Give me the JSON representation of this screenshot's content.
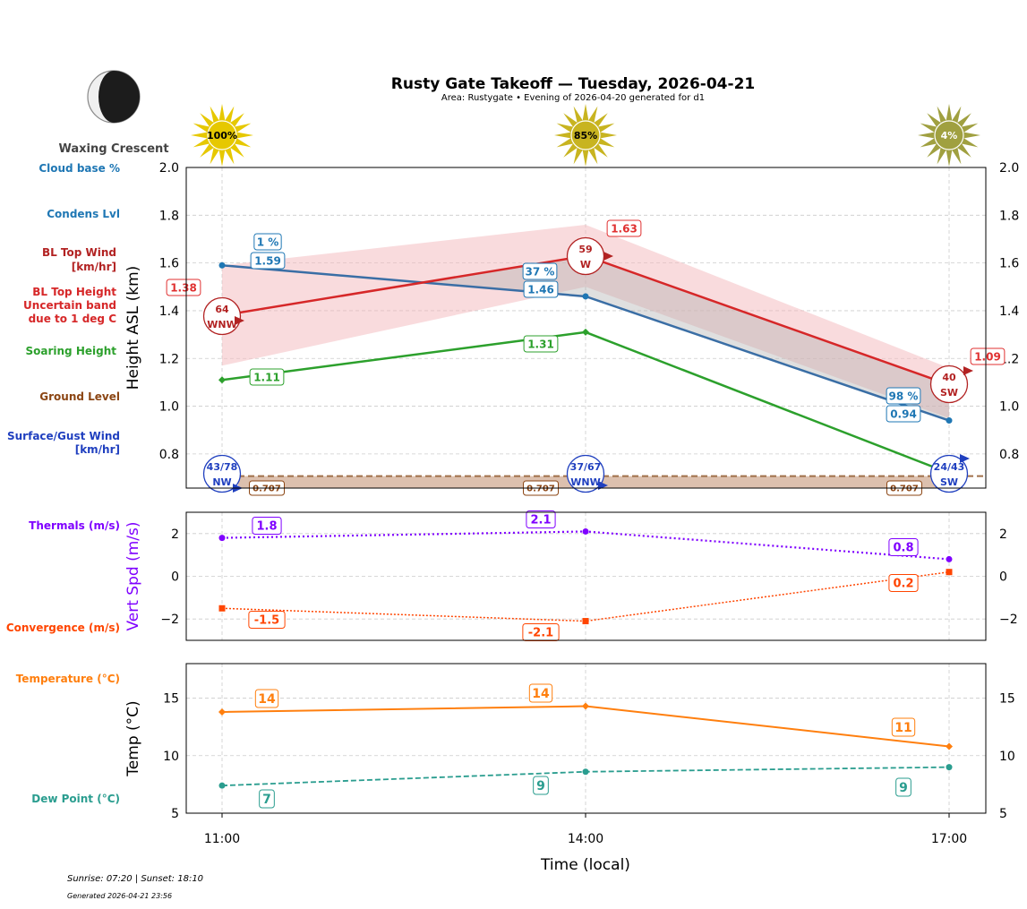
{
  "title": "Rusty Gate Takeoff — Tuesday, 2026-04-21",
  "subtitle": "Area: Rustygate • Evening of 2026-04-20 generated for d1",
  "moon_phase": "Waxing Crescent",
  "footer": {
    "sun_times": "Sunrise: 07:20 | Sunset: 18:10",
    "generated": "Generated 2026-04-21 23:56"
  },
  "row_labels": {
    "cloud_base": "Cloud base %",
    "condens": "Condens Lvl",
    "bl_wind": [
      "BL Top Wind",
      "[km/hr]"
    ],
    "bl_height": [
      "BL Top Height",
      "Uncertain band",
      "due to 1 deg C"
    ],
    "soaring": "Soaring Height",
    "ground": "Ground Level",
    "surface_wind": [
      "Surface/Gust Wind",
      "[km/hr]"
    ],
    "thermals": "Thermals (m/s)",
    "convergence": "Convergence (m/s)",
    "temperature": "Temperature (°C)",
    "dew_point": "Dew Point (°C)"
  },
  "colors": {
    "cloud": "#1f77b4",
    "bl": "#d62728",
    "soaring": "#2ca02c",
    "ground": "#8b4513",
    "surface": "#1f3fbf",
    "thermals": "#7f00ff",
    "convergence": "#ff4500",
    "temperature": "#ff7f0e",
    "dew": "#2a9d8f"
  },
  "chart_data": [
    {
      "type": "line",
      "ylabel": "Height ASL (km)",
      "ylim": [
        0.657,
        2.0
      ],
      "yticks": [
        0.8,
        1.0,
        1.2,
        1.4,
        1.6,
        1.8,
        2.0
      ],
      "grid": true,
      "x": [
        "11:00",
        "14:00",
        "17:00"
      ],
      "sun_percent": [
        "100%",
        "85%",
        "4%"
      ],
      "cloud_cover_percent": [
        "1 %",
        "37 %",
        "98 %"
      ],
      "condensation_level": [
        1.59,
        1.46,
        0.94
      ],
      "bl_top_height": [
        1.38,
        1.63,
        1.09
      ],
      "bl_uncertain_band": {
        "low": [
          1.17,
          1.5,
          0.95
        ],
        "high": [
          1.59,
          1.76,
          1.16
        ]
      },
      "bl_top_wind": [
        {
          "speed": "64",
          "dir": "WNW"
        },
        {
          "speed": "59",
          "dir": "W"
        },
        {
          "speed": "40",
          "dir": "SW"
        }
      ],
      "soaring_height": [
        1.11,
        1.31,
        0.72
      ],
      "soaring_labels": [
        "1.11",
        "1.31",
        ""
      ],
      "ground_level": 0.707,
      "surface_wind": [
        {
          "speed": "43/78",
          "dir": "NW"
        },
        {
          "speed": "37/67",
          "dir": "WNW"
        },
        {
          "speed": "24/43",
          "dir": "SW"
        }
      ]
    },
    {
      "type": "line",
      "ylabel": "Vert Spd (m/s)",
      "ylim": [
        -3,
        3
      ],
      "yticks": [
        -2,
        0,
        2
      ],
      "grid": true,
      "x": [
        "11:00",
        "14:00",
        "17:00"
      ],
      "series": [
        {
          "name": "Thermals (m/s)",
          "values": [
            1.8,
            2.1,
            0.8
          ]
        },
        {
          "name": "Convergence (m/s)",
          "values": [
            -1.5,
            -2.1,
            0.2
          ]
        }
      ]
    },
    {
      "type": "line",
      "ylabel": "Temp (°C)",
      "xlabel": "Time (local)",
      "ylim": [
        5,
        18
      ],
      "yticks": [
        5,
        10,
        15
      ],
      "grid": true,
      "x": [
        "11:00",
        "14:00",
        "17:00"
      ],
      "series": [
        {
          "name": "Temperature (°C)",
          "values": [
            13.8,
            14.3,
            10.8
          ],
          "labels": [
            "14",
            "14",
            "11"
          ]
        },
        {
          "name": "Dew Point (°C)",
          "values": [
            7.4,
            8.6,
            9.0
          ],
          "labels": [
            "7",
            "9",
            "9"
          ]
        }
      ]
    }
  ]
}
